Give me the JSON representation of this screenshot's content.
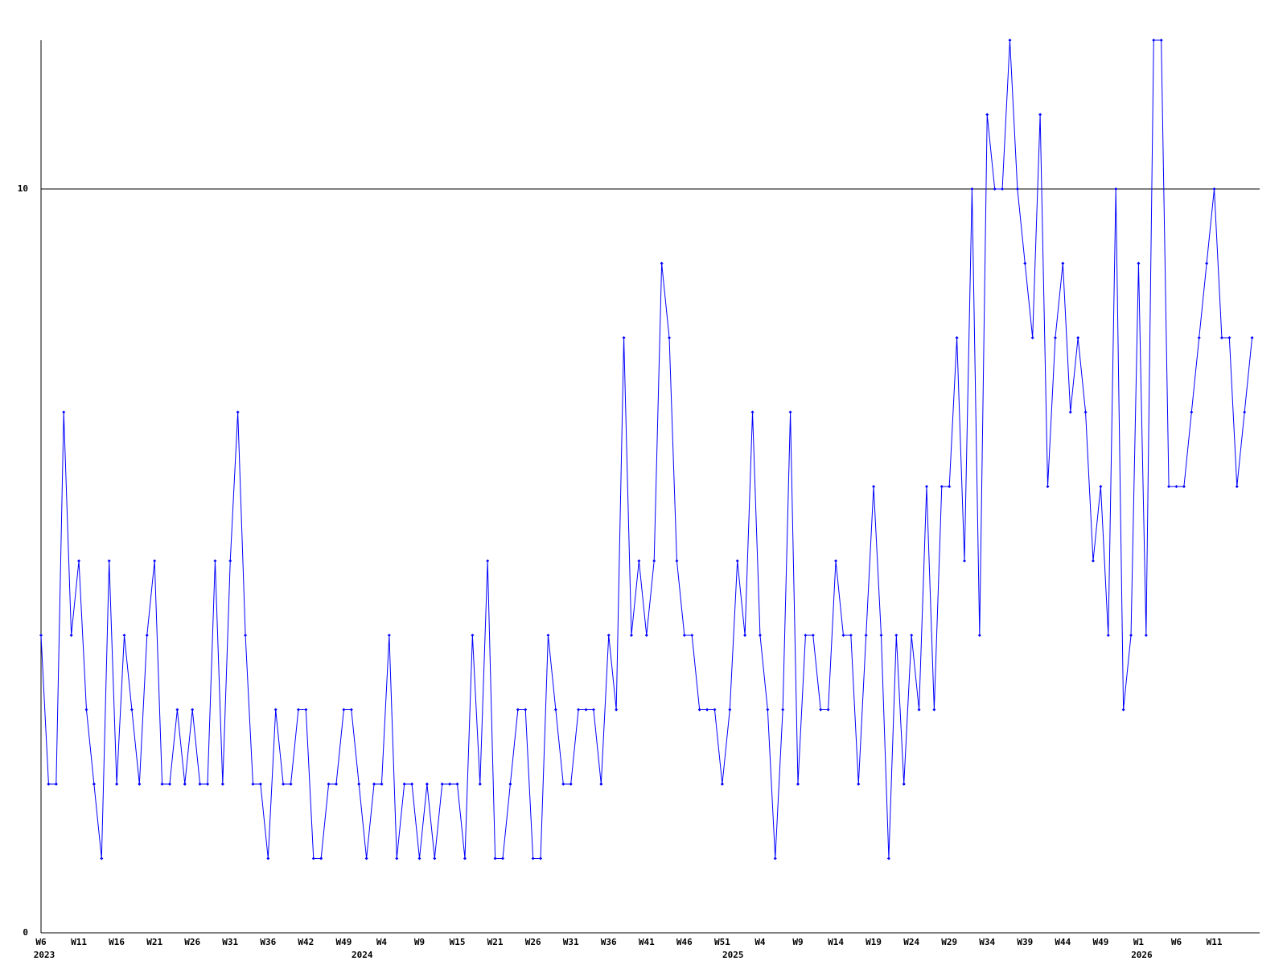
{
  "chart_data": {
    "type": "line",
    "categories": [
      "W6",
      null,
      null,
      null,
      null,
      "W11",
      null,
      null,
      null,
      null,
      "W16",
      null,
      null,
      null,
      null,
      "W21",
      null,
      null,
      null,
      null,
      "W26",
      null,
      null,
      null,
      null,
      "W31",
      null,
      null,
      null,
      null,
      "W36",
      null,
      null,
      null,
      null,
      "W42",
      null,
      null,
      null,
      null,
      "W49",
      null,
      null,
      null,
      null,
      "W4",
      null,
      null,
      null,
      null,
      "W9",
      null,
      null,
      null,
      null,
      "W15",
      null,
      null,
      null,
      null,
      "W21",
      null,
      null,
      null,
      null,
      "W26",
      null,
      null,
      null,
      null,
      "W31",
      null,
      null,
      null,
      null,
      "W36",
      null,
      null,
      null,
      null,
      "W41",
      null,
      null,
      null,
      null,
      "W46",
      null,
      null,
      null,
      null,
      "W51",
      null,
      null,
      null,
      null,
      "W4",
      null,
      null,
      null,
      null,
      "W9",
      null,
      null,
      null,
      null,
      "W14",
      null,
      null,
      null,
      null,
      "W19",
      null,
      null,
      null,
      null,
      "W24",
      null,
      null,
      null,
      null,
      "W29",
      null,
      null,
      null,
      null,
      "W34",
      null,
      null,
      null,
      null,
      "W39",
      null,
      null,
      null,
      null,
      "W44",
      null,
      null,
      null,
      null,
      "W49",
      null,
      null,
      null,
      null,
      "W1",
      null,
      null,
      null,
      null,
      "W6",
      null,
      null,
      null,
      null,
      "W11",
      null,
      null,
      null,
      null,
      null
    ],
    "year_labels": [
      "2023",
      null,
      null,
      null,
      null,
      null,
      null,
      null,
      null,
      null,
      null,
      null,
      null,
      null,
      null,
      null,
      null,
      null,
      null,
      null,
      null,
      null,
      null,
      null,
      null,
      null,
      null,
      null,
      null,
      null,
      null,
      null,
      null,
      null,
      null,
      null,
      null,
      null,
      null,
      null,
      null,
      null,
      "2024",
      null,
      null,
      null,
      null,
      null,
      null,
      null,
      null,
      null,
      null,
      null,
      null,
      null,
      null,
      null,
      null,
      null,
      null,
      null,
      null,
      null,
      null,
      null,
      null,
      null,
      null,
      null,
      null,
      null,
      null,
      null,
      null,
      null,
      null,
      null,
      null,
      null,
      null,
      null,
      null,
      null,
      null,
      null,
      null,
      null,
      null,
      null,
      null,
      "2025",
      null,
      null,
      null,
      null,
      null,
      null,
      null,
      null,
      null,
      null,
      null,
      null,
      null,
      null,
      null,
      null,
      null,
      null,
      null,
      null,
      null,
      null,
      null,
      null,
      null,
      null,
      null,
      null,
      null,
      null,
      null,
      null,
      null,
      null,
      null,
      null,
      null,
      null,
      null,
      null,
      null,
      null,
      null,
      null,
      null,
      null,
      null,
      null,
      null,
      null,
      null,
      null,
      null,
      "2026",
      null,
      null,
      null,
      null,
      null,
      null,
      null,
      null,
      null,
      null,
      null,
      null,
      null,
      null,
      null
    ],
    "series": [
      {
        "color": "#0000ff",
        "values": [
          4,
          2,
          2,
          7,
          4,
          5,
          3,
          2,
          1,
          5,
          2,
          4,
          3,
          2,
          4,
          5,
          2,
          2,
          3,
          2,
          3,
          2,
          2,
          5,
          2,
          5,
          7,
          4,
          2,
          2,
          1,
          3,
          2,
          2,
          3,
          3,
          1,
          1,
          2,
          2,
          3,
          3,
          2,
          1,
          2,
          2,
          4,
          1,
          2,
          2,
          1,
          2,
          1,
          2,
          2,
          2,
          1,
          4,
          2,
          5,
          1,
          1,
          2,
          3,
          3,
          1,
          1,
          4,
          3,
          2,
          2,
          3,
          3,
          3,
          2,
          4,
          3,
          8,
          4,
          5,
          4,
          5,
          9,
          8,
          5,
          4,
          4,
          3,
          3,
          3,
          2,
          3,
          5,
          4,
          7,
          4,
          3,
          1,
          3,
          7,
          2,
          4,
          4,
          3,
          3,
          5,
          4,
          4,
          2,
          4,
          6,
          4,
          1,
          4,
          2,
          4,
          3,
          6,
          3,
          6,
          6,
          8,
          5,
          10,
          4,
          11,
          10,
          10,
          12,
          10,
          9,
          8,
          11,
          6,
          8,
          9,
          7,
          8,
          7,
          5,
          6,
          4,
          10,
          3,
          4,
          9,
          4,
          12,
          12,
          6,
          6,
          6,
          7,
          8,
          9,
          10,
          8,
          8,
          6,
          7,
          8
        ]
      }
    ],
    "ylim": [
      0,
      12
    ],
    "yticks": [
      0,
      10
    ],
    "grid": true
  }
}
